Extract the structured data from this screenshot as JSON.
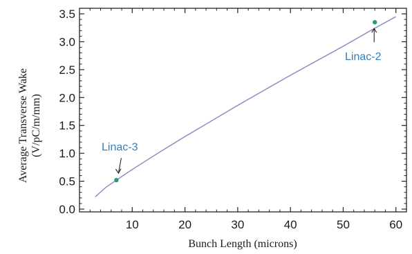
{
  "chart_data": {
    "type": "line",
    "xlabel": "Bunch Length (microns)",
    "ylabel_line1": "Average Transverse Wake",
    "ylabel_line2": "(V/pC/m/mm)",
    "xlim": [
      0,
      62
    ],
    "ylim": [
      -0.05,
      3.6
    ],
    "xticks": [
      10,
      20,
      30,
      40,
      50,
      60
    ],
    "xtick_labels": [
      "10",
      "20",
      "30",
      "40",
      "50",
      "60"
    ],
    "yticks": [
      0.0,
      0.5,
      1.0,
      1.5,
      2.0,
      2.5,
      3.0,
      3.5
    ],
    "ytick_labels": [
      "0.0",
      "0.5",
      "1.0",
      "1.5",
      "2.0",
      "2.5",
      "3.0",
      "3.5"
    ],
    "grid": false,
    "line_color": "#8a86bf",
    "point_color": "#2e9a78",
    "annotation_color": "#2f80c0",
    "series": [
      {
        "x": [
          3,
          5,
          7,
          10,
          15,
          20,
          25,
          30,
          35,
          40,
          45,
          50,
          55,
          60
        ],
        "y": [
          0.22,
          0.39,
          0.52,
          0.71,
          1.01,
          1.3,
          1.58,
          1.86,
          2.13,
          2.4,
          2.66,
          2.92,
          3.19,
          3.45
        ]
      }
    ],
    "points": [
      {
        "x": 7,
        "y": 0.52
      },
      {
        "x": 56,
        "y": 3.35
      }
    ],
    "annotations": [
      {
        "text": "Linac-3"
      },
      {
        "text": "Linac-2"
      }
    ]
  }
}
